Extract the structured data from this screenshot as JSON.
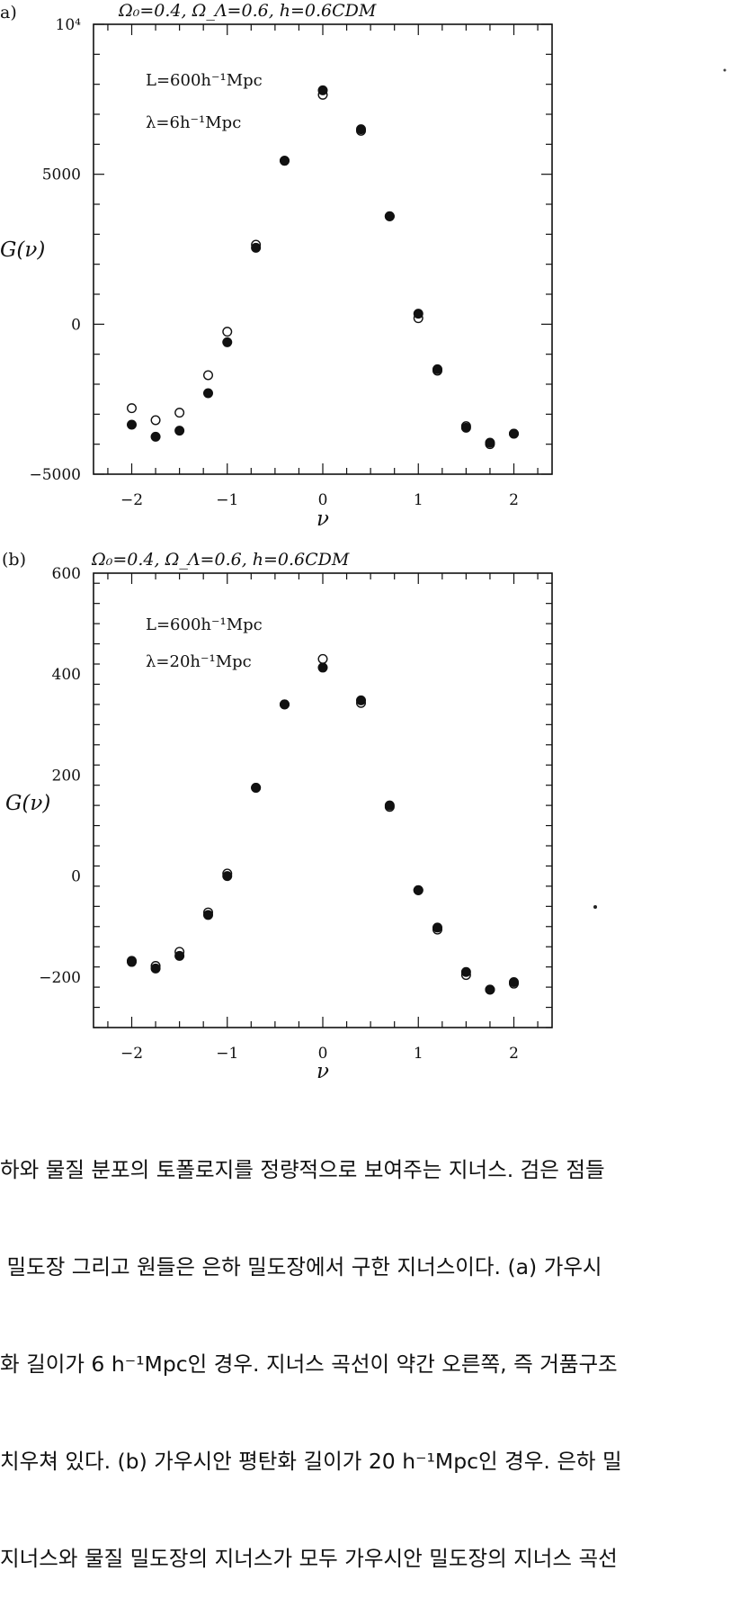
{
  "chart_data": [
    {
      "type": "scatter",
      "panel_label": "a)",
      "title": "Ω₀=0.4, Ω_Λ=0.6, h=0.6CDM",
      "xlabel": "ν",
      "ylabel": "G(ν)",
      "xlim": [
        -2.4,
        2.4
      ],
      "ylim": [
        -5000,
        10000
      ],
      "y_ticks": [
        -5000,
        0,
        5000,
        10000
      ],
      "y_tick_labels": [
        "−5000",
        "0",
        "5000",
        "10⁴"
      ],
      "x_ticks": [
        -2,
        -1,
        0,
        1,
        2
      ],
      "x_tick_labels": [
        "−2",
        "−1",
        "0",
        "1",
        "2"
      ],
      "annotations": [
        "L=600h⁻¹Mpc",
        "λ=6h⁻¹Mpc"
      ],
      "series": [
        {
          "marker": "filled",
          "x": [
            -2.0,
            -1.75,
            -1.5,
            -1.2,
            -1.0,
            -0.7,
            -0.4,
            0.0,
            0.4,
            0.7,
            1.0,
            1.2,
            1.5,
            1.75,
            2.0
          ],
          "y": [
            -3350,
            -3750,
            -3550,
            -2300,
            -600,
            2550,
            5450,
            7800,
            6500,
            3600,
            350,
            -1500,
            -3450,
            -3950,
            -3650
          ]
        },
        {
          "marker": "open",
          "x": [
            -2.0,
            -1.75,
            -1.5,
            -1.2,
            -1.0,
            -0.7,
            -0.4,
            0.0,
            0.4,
            0.7,
            1.0,
            1.2,
            1.5,
            1.75,
            2.0
          ],
          "y": [
            -2800,
            -3200,
            -2950,
            -1700,
            -250,
            2650,
            5450,
            7650,
            6450,
            3600,
            200,
            -1550,
            -3400,
            -4000,
            -3650
          ]
        }
      ]
    },
    {
      "type": "scatter",
      "panel_label": "(b)",
      "title": "Ω₀=0.4, Ω_Λ=0.6, h=0.6CDM",
      "xlabel": "ν",
      "ylabel": "G(ν)",
      "xlim": [
        -2.4,
        2.4
      ],
      "ylim": [
        -300,
        600
      ],
      "y_ticks": [
        -200,
        0,
        200,
        400,
        600
      ],
      "y_tick_labels": [
        "−200",
        "0",
        "200",
        "400",
        "600"
      ],
      "x_ticks": [
        -2,
        -1,
        0,
        1,
        2
      ],
      "x_tick_labels": [
        "−2",
        "−1",
        "0",
        "1",
        "2"
      ],
      "annotations": [
        "L=600h⁻¹Mpc",
        "λ=20h⁻¹Mpc"
      ],
      "series": [
        {
          "marker": "filled",
          "x": [
            -2.0,
            -1.75,
            -1.5,
            -1.2,
            -1.0,
            -0.7,
            -0.4,
            0.0,
            0.4,
            0.7,
            1.0,
            1.2,
            1.5,
            1.75,
            2.0
          ],
          "y": [
            -170,
            -183,
            -158,
            -77,
            0,
            175,
            340,
            413,
            348,
            140,
            -28,
            -102,
            -190,
            -225,
            -210
          ]
        },
        {
          "marker": "open",
          "x": [
            -2.0,
            -1.75,
            -1.5,
            -1.2,
            -1.0,
            -0.7,
            -0.4,
            0.0,
            0.4,
            0.7,
            1.0,
            1.2,
            1.5,
            1.75,
            2.0
          ],
          "y": [
            -168,
            -178,
            -150,
            -72,
            5,
            175,
            340,
            430,
            343,
            137,
            -28,
            -106,
            -196,
            -225,
            -213
          ]
        }
      ]
    }
  ],
  "caption": {
    "lines": [
      "하와 물질 분포의 토폴로지를 정량적으로 보여주는 지너스. 검은 점들",
      " 밀도장 그리고 원들은 은하 밀도장에서 구한 지너스이다. (a) 가우시",
      "화 길이가 6 h⁻¹Mpc인 경우. 지너스 곡선이 약간 오른쪽, 즉 거품구조",
      "치우쳐 있다. (b) 가우시안 평탄화 길이가 20 h⁻¹Mpc인 경우. 은하 밀",
      "지너스와 물질 밀도장의 지너스가 모두 가우시안 밀도장의 지너스 곡선"
    ]
  }
}
